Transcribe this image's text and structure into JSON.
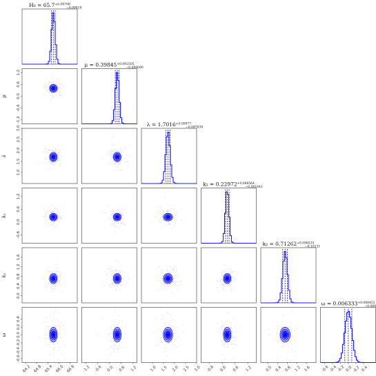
{
  "chart_data": {
    "type": "corner",
    "parameters": [
      {
        "symbol": "H0",
        "axis_label": "H₀",
        "title_name": "H₀",
        "title_value": "65.7",
        "title_plus": "+0.09798",
        "title_minus": "−0.09819",
        "range": [
          64.0,
          67.0
        ],
        "ticks": [
          64.2,
          64.8,
          65.4,
          66.0,
          66.6
        ],
        "tick_labels": [
          "64.2",
          "64.8",
          "65.4",
          "66.0",
          "66.6"
        ],
        "median": 65.7,
        "sigma": 0.098,
        "quantiles": [
          65.6,
          65.7,
          65.8
        ]
      },
      {
        "symbol": "mu",
        "axis_label": "μ",
        "title_name": "μ",
        "title_value": "0.39845",
        "title_plus": "+0.092505",
        "title_minus": "−0.098690",
        "range": [
          -1.4,
          1.4
        ],
        "ticks": [
          -1.2,
          -0.6,
          0.0,
          0.6,
          1.2
        ],
        "tick_labels": [
          "-1.2",
          "-0.6",
          "0.0",
          "0.6",
          "1.2"
        ],
        "median": 0.39845,
        "sigma": 0.095,
        "quantiles": [
          0.3,
          0.398,
          0.49
        ]
      },
      {
        "symbol": "lambda",
        "axis_label": "λ",
        "title_name": "λ",
        "title_value": "1.7016",
        "title_plus": "+0.09977",
        "title_minus": "−0.097638",
        "range": [
          0.5,
          3.0
        ],
        "ticks": [
          1.0,
          1.5,
          2.0,
          2.5,
          3.0
        ],
        "tick_labels": [
          "1.0",
          "1.5",
          "2.0",
          "2.5",
          "3.0"
        ],
        "median": 1.7016,
        "sigma": 0.099,
        "quantiles": [
          1.6,
          1.7,
          1.8
        ]
      },
      {
        "symbol": "k1",
        "axis_label": "k₁",
        "title_name": "k₁",
        "title_value": "0.22972",
        "title_plus": "+0.088564",
        "title_minus": "−0.081642",
        "range": [
          -1.0,
          1.6
        ],
        "ticks": [
          -0.6,
          0.0,
          0.6,
          1.2
        ],
        "tick_labels": [
          "-0.6",
          "0.0",
          "0.6",
          "1.2"
        ],
        "median": 0.22972,
        "sigma": 0.085,
        "quantiles": [
          0.148,
          0.23,
          0.318
        ]
      },
      {
        "symbol": "k2",
        "axis_label": "k₂",
        "title_name": "k₂",
        "title_value": "0.71262",
        "title_plus": "+0.096535",
        "title_minus": "−0.10131",
        "range": [
          -0.3,
          2.0
        ],
        "ticks": [
          0.0,
          0.4,
          0.8,
          1.2,
          1.6
        ],
        "tick_labels": [
          "0.0",
          "0.4",
          "0.8",
          "1.2",
          "1.6"
        ],
        "median": 0.71262,
        "sigma": 0.099,
        "quantiles": [
          0.611,
          0.713,
          0.809
        ]
      },
      {
        "symbol": "omega",
        "axis_label": "ω",
        "title_name": "ω",
        "title_value": "0.006333",
        "title_plus": "+0.088453",
        "title_minus": "−0.089642",
        "range": [
          -0.7,
          0.7
        ],
        "ticks": [
          -0.6,
          -0.4,
          -0.2,
          0.0,
          0.2,
          0.4
        ],
        "tick_labels": [
          "-0.6",
          "-0.4",
          "-0.2",
          "0.0",
          "0.2",
          "0.4"
        ],
        "median": 0.006333,
        "sigma": 0.089,
        "quantiles": [
          -0.083,
          0.006,
          0.095
        ]
      }
    ],
    "contour_levels_sigma": [
      0.5,
      1.0,
      1.5,
      2.0
    ],
    "colors": {
      "main": "#0000ff",
      "fill_levels": [
        "#0000ff",
        "#3333ff",
        "#8c8cff",
        "#c7c7ff"
      ],
      "hist_line": "#1a1aff",
      "quantile_line": "#1a1a99",
      "scatter": "#9999ff"
    }
  }
}
